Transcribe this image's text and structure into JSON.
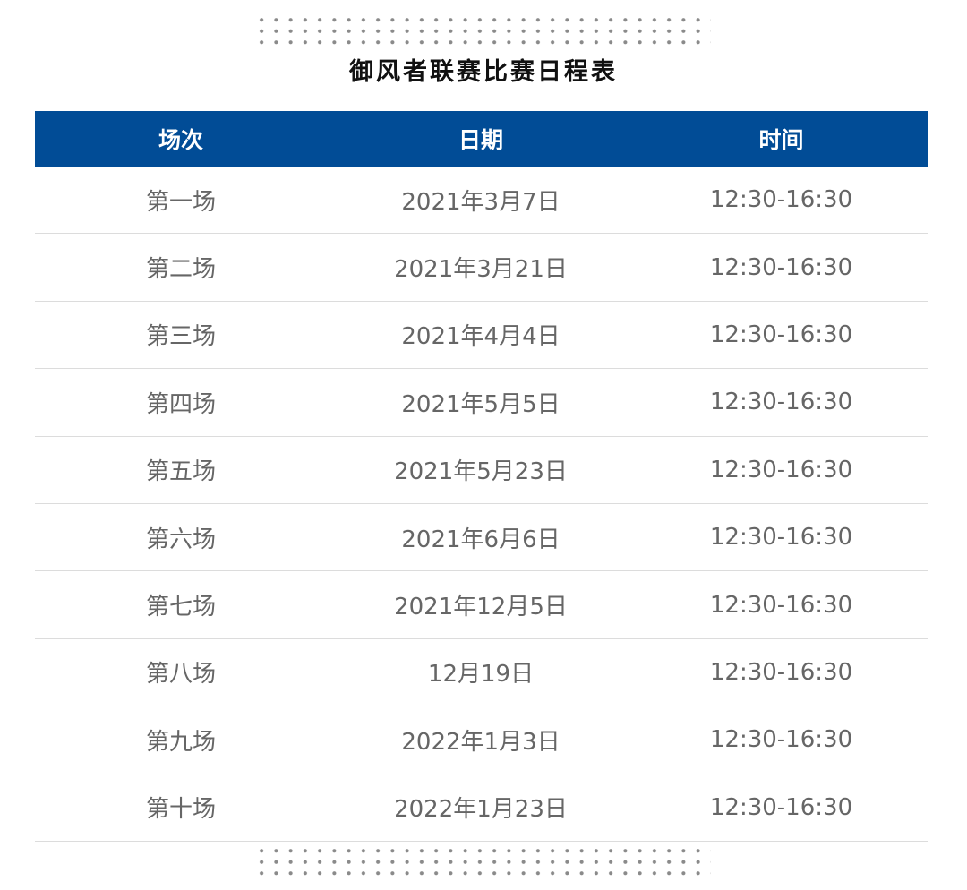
{
  "title": "御风者联赛比赛日程表",
  "colors": {
    "header_bg": "#014c96",
    "header_text": "#ffffff",
    "cell_text": "#666666"
  },
  "table": {
    "headers": [
      "场次",
      "日期",
      "时间"
    ],
    "rows": [
      [
        "第一场",
        "2021年3月7日",
        "12:30-16:30"
      ],
      [
        "第二场",
        "2021年3月21日",
        "12:30-16:30"
      ],
      [
        "第三场",
        "2021年4月4日",
        "12:30-16:30"
      ],
      [
        "第四场",
        "2021年5月5日",
        "12:30-16:30"
      ],
      [
        "第五场",
        "2021年5月23日",
        "12:30-16:30"
      ],
      [
        "第六场",
        "2021年6月6日",
        "12:30-16:30"
      ],
      [
        "第七场",
        "2021年12月5日",
        "12:30-16:30"
      ],
      [
        "第八场",
        "12月19日",
        "12:30-16:30"
      ],
      [
        "第九场",
        "2022年1月3日",
        "12:30-16:30"
      ],
      [
        "第十场",
        "2022年1月23日",
        "12:30-16:30"
      ]
    ]
  }
}
